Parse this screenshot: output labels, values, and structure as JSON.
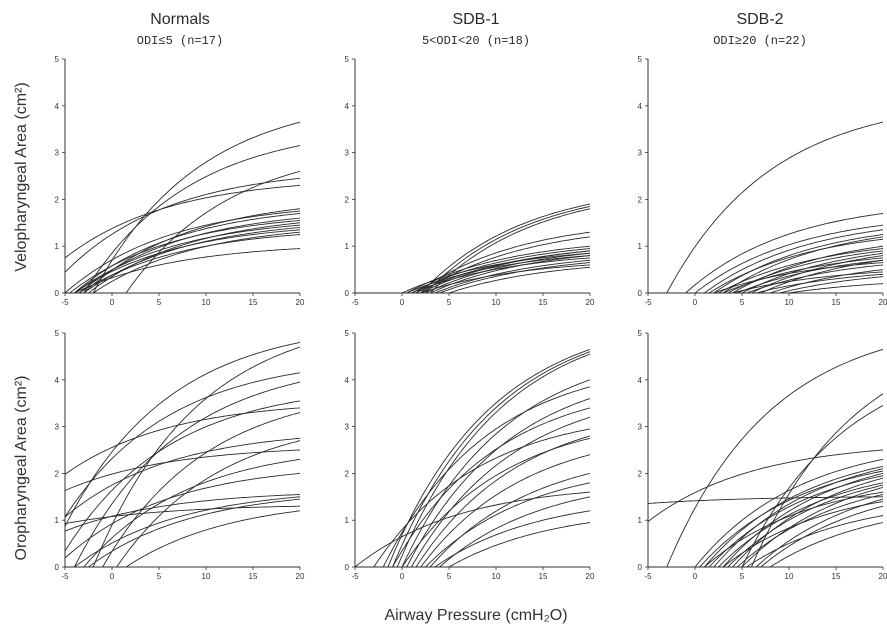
{
  "figure": {
    "columns": [
      {
        "title": "Normals",
        "subtitle": "ODI≤5 (n=17)"
      },
      {
        "title": "SDB-1",
        "subtitle": "5<ODI<20 (n=18)"
      },
      {
        "title": "SDB-2",
        "subtitle": "ODI≥20 (n=22)"
      }
    ],
    "row_labels": [
      "Velopharyngeal Area (cm²)",
      "Oropharyngeal Area (cm²)"
    ],
    "xlabel": "Airway Pressure (cmH₂O)"
  },
  "chart_data": [
    {
      "type": "line",
      "group": "Normals",
      "ylabel": "Velopharyngeal Area (cm²)",
      "xlim": [
        -5,
        20
      ],
      "ylim": [
        0,
        5
      ],
      "xticks": [
        -5,
        0,
        5,
        10,
        15,
        20
      ],
      "yticks": [
        0,
        1,
        2,
        3,
        4,
        5
      ],
      "series": [
        {
          "x0": -2,
          "y20": 3.65
        },
        {
          "x0": -3,
          "y20": 3.15
        },
        {
          "x0": 1.5,
          "y20": 2.6
        },
        {
          "x0": -7,
          "y20": 2.45
        },
        {
          "x0": -9,
          "y20": 2.3
        },
        {
          "x0": -3,
          "y20": 1.8
        },
        {
          "x0": -5,
          "y20": 1.75
        },
        {
          "x0": -4,
          "y20": 1.7
        },
        {
          "x0": -3.5,
          "y20": 1.6
        },
        {
          "x0": -4.5,
          "y20": 1.55
        },
        {
          "x0": -2.5,
          "y20": 1.5
        },
        {
          "x0": -4,
          "y20": 1.45
        },
        {
          "x0": -3,
          "y20": 1.4
        },
        {
          "x0": -4,
          "y20": 1.35
        },
        {
          "x0": -2,
          "y20": 1.3
        },
        {
          "x0": -3.5,
          "y20": 1.25
        },
        {
          "x0": -4,
          "y20": 0.95
        }
      ]
    },
    {
      "type": "line",
      "group": "SDB-1",
      "ylabel": "Velopharyngeal Area (cm²)",
      "xlim": [
        -5,
        20
      ],
      "ylim": [
        0,
        5
      ],
      "xticks": [
        -5,
        0,
        5,
        10,
        15,
        20
      ],
      "yticks": [
        0,
        1,
        2,
        3,
        4,
        5
      ],
      "series": [
        {
          "x0": 2.0,
          "y20": 1.9
        },
        {
          "x0": 2.5,
          "y20": 1.85
        },
        {
          "x0": 3.0,
          "y20": 1.8
        },
        {
          "x0": 1.5,
          "y20": 1.3
        },
        {
          "x0": 2.0,
          "y20": 1.2
        },
        {
          "x0": 0.5,
          "y20": 1.0
        },
        {
          "x0": 1.0,
          "y20": 0.95
        },
        {
          "x0": 1.5,
          "y20": 0.9
        },
        {
          "x0": 2.0,
          "y20": 0.9
        },
        {
          "x0": 0.0,
          "y20": 0.85
        },
        {
          "x0": 2.5,
          "y20": 0.85
        },
        {
          "x0": 0.5,
          "y20": 0.8
        },
        {
          "x0": 3.0,
          "y20": 0.8
        },
        {
          "x0": 1.0,
          "y20": 0.75
        },
        {
          "x0": 3.5,
          "y20": 0.7
        },
        {
          "x0": 4.0,
          "y20": 0.65
        },
        {
          "x0": 2.0,
          "y20": 0.6
        },
        {
          "x0": 5.0,
          "y20": 0.55
        }
      ]
    },
    {
      "type": "line",
      "group": "SDB-2",
      "ylabel": "Velopharyngeal Area (cm²)",
      "xlim": [
        -5,
        20
      ],
      "ylim": [
        0,
        5
      ],
      "xticks": [
        -5,
        0,
        5,
        10,
        15,
        20
      ],
      "yticks": [
        0,
        1,
        2,
        3,
        4,
        5
      ],
      "series": [
        {
          "x0": -3,
          "y20": 3.65
        },
        {
          "x0": -1,
          "y20": 1.7
        },
        {
          "x0": 0,
          "y20": 1.45
        },
        {
          "x0": 1,
          "y20": 1.35
        },
        {
          "x0": 2,
          "y20": 1.25
        },
        {
          "x0": 3,
          "y20": 1.2
        },
        {
          "x0": 1.5,
          "y20": 1.15
        },
        {
          "x0": 4,
          "y20": 1.0
        },
        {
          "x0": 2.5,
          "y20": 0.95
        },
        {
          "x0": 3.5,
          "y20": 0.9
        },
        {
          "x0": 5,
          "y20": 0.85
        },
        {
          "x0": 6,
          "y20": 0.8
        },
        {
          "x0": 3,
          "y20": 0.75
        },
        {
          "x0": 4.5,
          "y20": 0.7
        },
        {
          "x0": 7,
          "y20": 0.7
        },
        {
          "x0": 2,
          "y20": 0.65
        },
        {
          "x0": 5.5,
          "y20": 0.6
        },
        {
          "x0": 8,
          "y20": 0.5
        },
        {
          "x0": 4,
          "y20": 0.45
        },
        {
          "x0": 6.5,
          "y20": 0.4
        },
        {
          "x0": 9,
          "y20": 0.35
        },
        {
          "x0": 10,
          "y20": 0.2
        }
      ]
    },
    {
      "type": "line",
      "group": "Normals",
      "ylabel": "Oropharyngeal Area (cm²)",
      "xlim": [
        -5,
        20
      ],
      "ylim": [
        0,
        5
      ],
      "xticks": [
        -5,
        0,
        5,
        10,
        15,
        20
      ],
      "yticks": [
        0,
        1,
        2,
        3,
        4,
        5
      ],
      "series": [
        {
          "x0": -7,
          "y20": 4.8
        },
        {
          "x0": -2,
          "y20": 4.7
        },
        {
          "x0": -8,
          "y20": 4.15
        },
        {
          "x0": -4,
          "y20": 3.95
        },
        {
          "x0": -6,
          "y20": 3.55
        },
        {
          "x0": -14,
          "y20": 3.4
        },
        {
          "x0": -1,
          "y20": 3.3
        },
        {
          "x0": -10,
          "y20": 2.75
        },
        {
          "x0": 0.5,
          "y20": 2.7
        },
        {
          "x0": -16,
          "y20": 2.5
        },
        {
          "x0": -3,
          "y20": 2.3
        },
        {
          "x0": -6,
          "y20": 2.0
        },
        {
          "x0": -12,
          "y20": 1.55
        },
        {
          "x0": -4,
          "y20": 1.5
        },
        {
          "x0": -2.5,
          "y20": 1.45
        },
        {
          "x0": -18,
          "y20": 1.3
        },
        {
          "x0": 1.5,
          "y20": 1.2
        }
      ]
    },
    {
      "type": "line",
      "group": "SDB-1",
      "ylabel": "Oropharyngeal Area (cm²)",
      "xlim": [
        -5,
        20
      ],
      "ylim": [
        0,
        5
      ],
      "xticks": [
        -5,
        0,
        5,
        10,
        15,
        20
      ],
      "yticks": [
        0,
        1,
        2,
        3,
        4,
        5
      ],
      "series": [
        {
          "x0": -1.5,
          "y20": 4.65
        },
        {
          "x0": -1,
          "y20": 4.6
        },
        {
          "x0": -0.5,
          "y20": 4.55
        },
        {
          "x0": 0,
          "y20": 4.0
        },
        {
          "x0": -2,
          "y20": 3.85
        },
        {
          "x0": 0.5,
          "y20": 3.6
        },
        {
          "x0": -1,
          "y20": 3.4
        },
        {
          "x0": 1,
          "y20": 3.2
        },
        {
          "x0": -3,
          "y20": 2.95
        },
        {
          "x0": 1.5,
          "y20": 2.8
        },
        {
          "x0": 0,
          "y20": 2.75
        },
        {
          "x0": 2,
          "y20": 2.4
        },
        {
          "x0": 3,
          "y20": 2.0
        },
        {
          "x0": 2.5,
          "y20": 1.8
        },
        {
          "x0": -5,
          "y20": 1.6
        },
        {
          "x0": 4,
          "y20": 1.5
        },
        {
          "x0": 3.5,
          "y20": 1.2
        },
        {
          "x0": 5,
          "y20": 0.95
        }
      ]
    },
    {
      "type": "line",
      "group": "SDB-2",
      "ylabel": "Oropharyngeal Area (cm²)",
      "xlim": [
        -5,
        20
      ],
      "ylim": [
        0,
        5
      ],
      "xticks": [
        -5,
        0,
        5,
        10,
        15,
        20
      ],
      "yticks": [
        0,
        1,
        2,
        3,
        4,
        5
      ],
      "series": [
        {
          "x0": -3,
          "y20": 4.65
        },
        {
          "x0": 6,
          "y20": 3.7
        },
        {
          "x0": 5,
          "y20": 3.45
        },
        {
          "x0": -10,
          "y20": 2.5
        },
        {
          "x0": 0,
          "y20": 2.3
        },
        {
          "x0": 1,
          "y20": 2.15
        },
        {
          "x0": 2,
          "y20": 2.1
        },
        {
          "x0": 0.5,
          "y20": 2.05
        },
        {
          "x0": 3,
          "y20": 2.0
        },
        {
          "x0": 1.5,
          "y20": 1.95
        },
        {
          "x0": 4,
          "y20": 1.9
        },
        {
          "x0": 2.5,
          "y20": 1.8
        },
        {
          "x0": 3.5,
          "y20": 1.75
        },
        {
          "x0": 5,
          "y20": 1.7
        },
        {
          "x0": 1,
          "y20": 1.6
        },
        {
          "x0": 4.5,
          "y20": 1.55
        },
        {
          "x0": -30,
          "y20": 1.5
        },
        {
          "x0": 6.5,
          "y20": 1.45
        },
        {
          "x0": 3,
          "y20": 1.4
        },
        {
          "x0": 7,
          "y20": 1.3
        },
        {
          "x0": 5.5,
          "y20": 1.1
        },
        {
          "x0": 8,
          "y20": 0.95
        }
      ]
    }
  ]
}
